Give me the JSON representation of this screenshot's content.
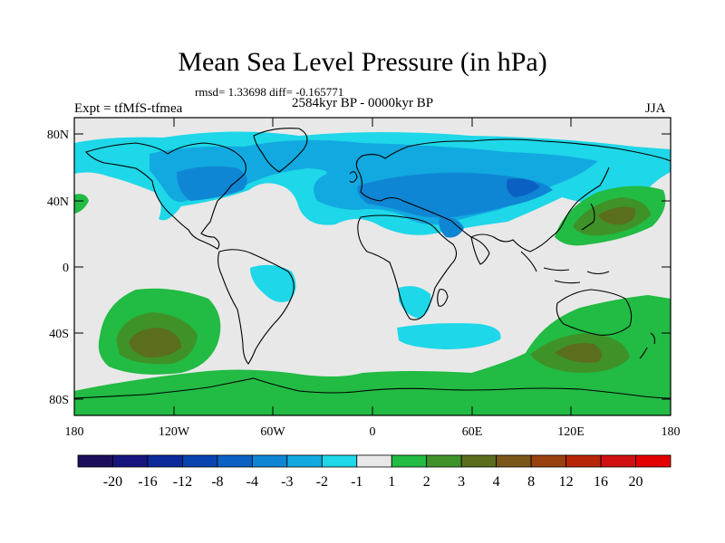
{
  "title": "Mean Sea Level Pressure (in hPa)",
  "stats_line": "rmsd= 1.33698 diff= -0.165771",
  "experiment": "Expt = tfMfS-tfmea",
  "period": "2584kyr BP - 0000kyr BP",
  "season": "JJA",
  "axes": {
    "lat_labels": [
      "80N",
      "40N",
      "0",
      "40S",
      "80S"
    ],
    "lon_labels": [
      "180",
      "120W",
      "60W",
      "0",
      "60E",
      "120E",
      "180"
    ]
  },
  "colorbar": {
    "labels": [
      "-20",
      "-16",
      "-12",
      "-8",
      "-4",
      "-3",
      "-2",
      "-1",
      "1",
      "2",
      "3",
      "4",
      "8",
      "12",
      "16",
      "20"
    ],
    "colors": [
      "#1e0f5c",
      "#16157e",
      "#0c2a9a",
      "#0a44b0",
      "#0b60c4",
      "#0f86d4",
      "#12a9e0",
      "#1ed7e8",
      "#e8e8e8",
      "#22bb44",
      "#3f9228",
      "#5a6e1e",
      "#7a5718",
      "#9a4110",
      "#b8260a",
      "#d01010",
      "#e30000"
    ]
  },
  "palette": {
    "background": "#e8e8e8",
    "neg1": "#1ed7e8",
    "neg2": "#12a9e0",
    "neg3": "#0f86d4",
    "neg4": "#0b60c4",
    "pos1": "#22bb44",
    "pos2": "#3f9228",
    "pos3": "#5a6e1e"
  }
}
